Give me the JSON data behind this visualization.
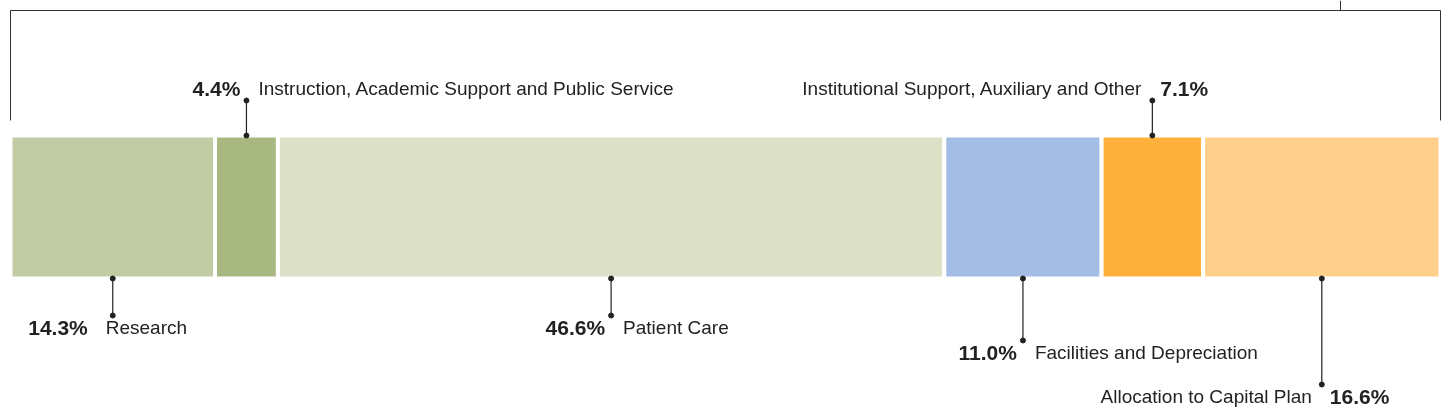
{
  "chart_data": {
    "type": "bar",
    "orientation": "horizontal",
    "stacked": true,
    "categories": [
      null
    ],
    "series": [
      {
        "name": "Research",
        "color": "#c2cca4",
        "values": [
          14.3
        ],
        "value_labels": [
          "14.3%"
        ]
      },
      {
        "name": "Instruction, Academic Support and Public Service",
        "color": "#a8b880",
        "values": [
          4.4
        ],
        "value_labels": [
          "4.4%"
        ]
      },
      {
        "name": "Patient Care",
        "color": "#dce0c6",
        "values": [
          46.6
        ],
        "value_labels": [
          "46.6%"
        ]
      },
      {
        "name": "Facilities and Depreciation",
        "color": "#a3bde4",
        "values": [
          11.0
        ],
        "value_labels": [
          "11.0%"
        ]
      },
      {
        "name": "Institutional Support, Auxiliary and Other",
        "color": "#fdb13a",
        "values": [
          7.1
        ],
        "value_labels": [
          "7.1%"
        ]
      },
      {
        "name": "Allocation to Capital Plan",
        "color": "#fed08c",
        "values": [
          16.6
        ],
        "value_labels": [
          "16.6%"
        ]
      }
    ]
  }
}
